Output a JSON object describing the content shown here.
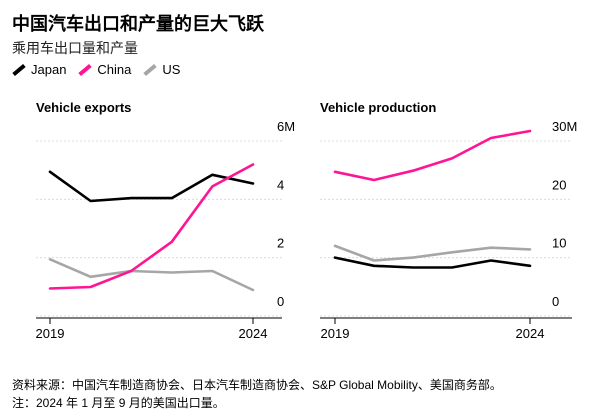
{
  "title": "中国汽车出口和产量的巨大飞跃",
  "subtitle": "乘用车出口量和产量",
  "legend": [
    {
      "name": "Japan",
      "color": "#000000"
    },
    {
      "name": "China",
      "color": "#ff1493"
    },
    {
      "name": "US",
      "color": "#a6a6a6"
    }
  ],
  "chart_data": [
    {
      "type": "line",
      "title": "Vehicle exports",
      "x": [
        2019,
        2020,
        2021,
        2022,
        2023,
        2024
      ],
      "xticks": [
        "2019",
        "2024"
      ],
      "yticks": [
        0,
        2,
        4,
        6
      ],
      "ytick_labels": [
        "0",
        "2",
        "4",
        "6M"
      ],
      "ylim": [
        0,
        6
      ],
      "series": [
        {
          "name": "Japan",
          "color": "#000000",
          "values": [
            4.6,
            3.6,
            3.7,
            3.7,
            4.5,
            4.2
          ]
        },
        {
          "name": "China",
          "color": "#ff1493",
          "values": [
            0.6,
            0.65,
            1.2,
            2.2,
            4.1,
            4.85
          ]
        },
        {
          "name": "US",
          "color": "#a6a6a6",
          "values": [
            1.6,
            1.0,
            1.2,
            1.15,
            1.2,
            0.55
          ]
        }
      ]
    },
    {
      "type": "line",
      "title": "Vehicle production",
      "x": [
        2019,
        2020,
        2021,
        2022,
        2023,
        2024
      ],
      "xticks": [
        "2019",
        "2024"
      ],
      "yticks": [
        0,
        10,
        20,
        30
      ],
      "ytick_labels": [
        "0",
        "10",
        "20",
        "30M"
      ],
      "ylim": [
        0,
        30
      ],
      "series": [
        {
          "name": "Japan",
          "color": "#000000",
          "values": [
            8.3,
            6.9,
            6.6,
            6.6,
            7.8,
            6.9
          ]
        },
        {
          "name": "China",
          "color": "#ff1493",
          "values": [
            23.0,
            21.6,
            23.2,
            25.3,
            28.8,
            30.0
          ]
        },
        {
          "name": "US",
          "color": "#a6a6a6",
          "values": [
            10.3,
            7.8,
            8.3,
            9.2,
            10.0,
            9.7
          ]
        }
      ]
    }
  ],
  "footer": {
    "source": "资料来源：中国汽车制造商协会、日本汽车制造商协会、S&P Global Mobility、美国商务部。",
    "note": "注：2024 年 1 月至 9 月的美国出口量。"
  }
}
